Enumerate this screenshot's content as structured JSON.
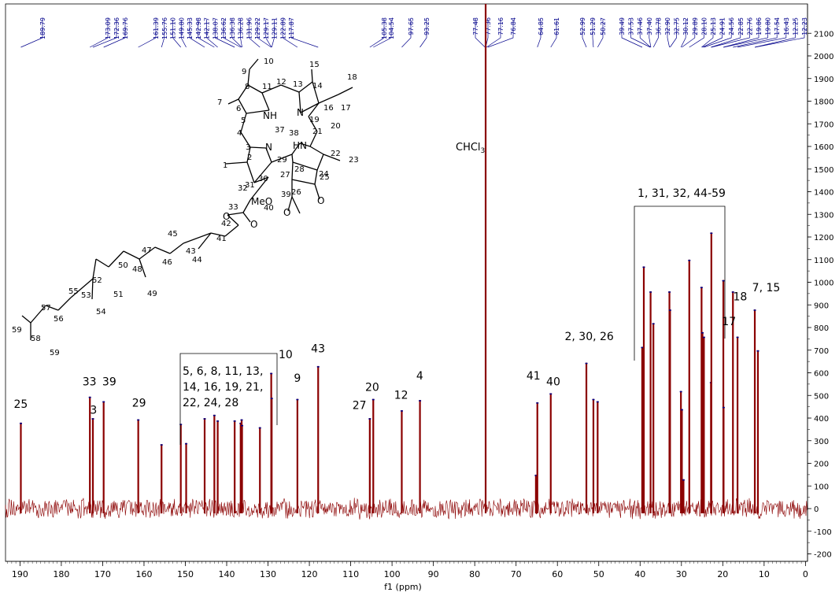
{
  "chart_data": {
    "type": "line",
    "xlabel": "f1 (ppm)",
    "xlim": [
      193.5,
      -0.5
    ],
    "ylim": [
      -230,
      2150
    ],
    "x_ticks": [
      190,
      180,
      170,
      160,
      150,
      140,
      130,
      120,
      110,
      100,
      90,
      80,
      70,
      60,
      50,
      40,
      30,
      20,
      10,
      0
    ],
    "y_ticks": [
      2100,
      2000,
      1900,
      1800,
      1700,
      1600,
      1500,
      1400,
      1300,
      1200,
      1100,
      1000,
      900,
      800,
      700,
      600,
      500,
      400,
      300,
      200,
      100,
      0,
      -100,
      -200
    ],
    "colors": {
      "spectrum": "#8b0000",
      "peak_labels": "#00008b",
      "integration": "#0000ff"
    },
    "solvent_label": "CHCl3",
    "peak_list": [
      "189.79",
      "173.09",
      "172.36",
      "169.76",
      "161.39",
      "155.76",
      "151.10",
      "149.80",
      "145.33",
      "142.98",
      "142.17",
      "138.07",
      "136.62",
      "136.38",
      "136.28",
      "131.96",
      "129.22",
      "129.17",
      "129.11",
      "122.89",
      "117.87",
      "105.38",
      "104.54",
      "97.65",
      "93.25",
      "77.48",
      "77.36",
      "77.16",
      "76.84",
      "64.85",
      "61.61",
      "52.99",
      "51.29",
      "50.27",
      "39.49",
      "37.53",
      "37.46",
      "37.40",
      "36.78",
      "32.90",
      "32.75",
      "30.12",
      "29.89",
      "28.10",
      "25.13",
      "24.91",
      "24.56",
      "22.85",
      "22.76",
      "19.86",
      "19.80",
      "17.54",
      "16.43",
      "12.25",
      "12.23"
    ],
    "peaks": [
      {
        "x": 189.79,
        "y": 380
      },
      {
        "x": 173.09,
        "y": 495
      },
      {
        "x": 172.36,
        "y": 400
      },
      {
        "x": 169.76,
        "y": 475
      },
      {
        "x": 161.39,
        "y": 395
      },
      {
        "x": 155.76,
        "y": 285
      },
      {
        "x": 151.1,
        "y": 375
      },
      {
        "x": 149.8,
        "y": 290
      },
      {
        "x": 145.33,
        "y": 400
      },
      {
        "x": 142.98,
        "y": 415
      },
      {
        "x": 142.17,
        "y": 390
      },
      {
        "x": 138.07,
        "y": 390
      },
      {
        "x": 136.62,
        "y": 380
      },
      {
        "x": 136.38,
        "y": 395
      },
      {
        "x": 136.28,
        "y": 370
      },
      {
        "x": 131.96,
        "y": 360
      },
      {
        "x": 129.22,
        "y": 600
      },
      {
        "x": 129.11,
        "y": 490
      },
      {
        "x": 122.89,
        "y": 485
      },
      {
        "x": 117.87,
        "y": 630
      },
      {
        "x": 105.38,
        "y": 400
      },
      {
        "x": 104.54,
        "y": 485
      },
      {
        "x": 97.65,
        "y": 435
      },
      {
        "x": 93.25,
        "y": 480
      },
      {
        "x": 77.36,
        "y": 2300
      },
      {
        "x": 65.2,
        "y": 150
      },
      {
        "x": 64.85,
        "y": 470
      },
      {
        "x": 61.61,
        "y": 510
      },
      {
        "x": 52.99,
        "y": 645
      },
      {
        "x": 51.29,
        "y": 485
      },
      {
        "x": 50.27,
        "y": 475
      },
      {
        "x": 39.49,
        "y": 715
      },
      {
        "x": 39.1,
        "y": 1070
      },
      {
        "x": 37.46,
        "y": 960
      },
      {
        "x": 36.78,
        "y": 820
      },
      {
        "x": 32.9,
        "y": 960
      },
      {
        "x": 32.75,
        "y": 880
      },
      {
        "x": 30.12,
        "y": 520
      },
      {
        "x": 29.89,
        "y": 440
      },
      {
        "x": 29.5,
        "y": 130
      },
      {
        "x": 28.1,
        "y": 1100
      },
      {
        "x": 25.13,
        "y": 980
      },
      {
        "x": 24.91,
        "y": 780
      },
      {
        "x": 24.56,
        "y": 760
      },
      {
        "x": 22.85,
        "y": 560
      },
      {
        "x": 22.76,
        "y": 1220
      },
      {
        "x": 19.86,
        "y": 1010
      },
      {
        "x": 19.8,
        "y": 450
      },
      {
        "x": 17.54,
        "y": 960
      },
      {
        "x": 16.43,
        "y": 760
      },
      {
        "x": 12.25,
        "y": 880
      },
      {
        "x": 11.5,
        "y": 700
      }
    ],
    "annotations": [
      {
        "text": "25",
        "x": 189.8,
        "y": 445
      },
      {
        "text": "33",
        "x": 173.2,
        "y": 545
      },
      {
        "text": "3",
        "x": 172.2,
        "y": 420
      },
      {
        "text": "39",
        "x": 168.4,
        "y": 545
      },
      {
        "text": "29",
        "x": 161.2,
        "y": 450
      },
      {
        "text": "9",
        "x": 122.9,
        "y": 560
      },
      {
        "text": "43",
        "x": 117.9,
        "y": 690
      },
      {
        "text": "20",
        "x": 104.8,
        "y": 520
      },
      {
        "text": "27",
        "x": 107.9,
        "y": 440
      },
      {
        "text": "12",
        "x": 97.8,
        "y": 485
      },
      {
        "text": "4",
        "x": 93.3,
        "y": 570
      },
      {
        "text": "41",
        "x": 65.8,
        "y": 570
      },
      {
        "text": "40",
        "x": 61.0,
        "y": 545
      },
      {
        "text": "2, 30, 26",
        "x": 52.3,
        "y": 745
      },
      {
        "text": "17",
        "x": 18.5,
        "y": 810
      },
      {
        "text": "18",
        "x": 15.8,
        "y": 920
      },
      {
        "text": "7, 15",
        "x": 9.5,
        "y": 960
      }
    ],
    "bracket_left": {
      "lines": [
        "5, 6, 8, 11, 13,",
        "14, 16, 19, 21,",
        "22, 24, 28"
      ],
      "tag": "10"
    },
    "bracket_right": {
      "label": "1, 31, 32, 44-59"
    },
    "molecule": {
      "atom_labels": [
        "N",
        "NH",
        "N",
        "HN",
        "O",
        "O",
        "MeO",
        "O",
        "O"
      ],
      "locants": [
        "1",
        "2",
        "3",
        "4",
        "5",
        "6",
        "7",
        "8",
        "9",
        "10",
        "11",
        "12",
        "13",
        "14",
        "15",
        "16",
        "17",
        "18",
        "19",
        "20",
        "21",
        "22",
        "23",
        "24",
        "25",
        "26",
        "27",
        "28",
        "29",
        "30",
        "31",
        "32",
        "33",
        "37",
        "38",
        "39",
        "40",
        "41",
        "42",
        "43",
        "44",
        "45",
        "46",
        "47",
        "48",
        "49",
        "50",
        "51",
        "52",
        "53",
        "54",
        "55",
        "56",
        "57",
        "58",
        "59",
        "59"
      ]
    }
  }
}
